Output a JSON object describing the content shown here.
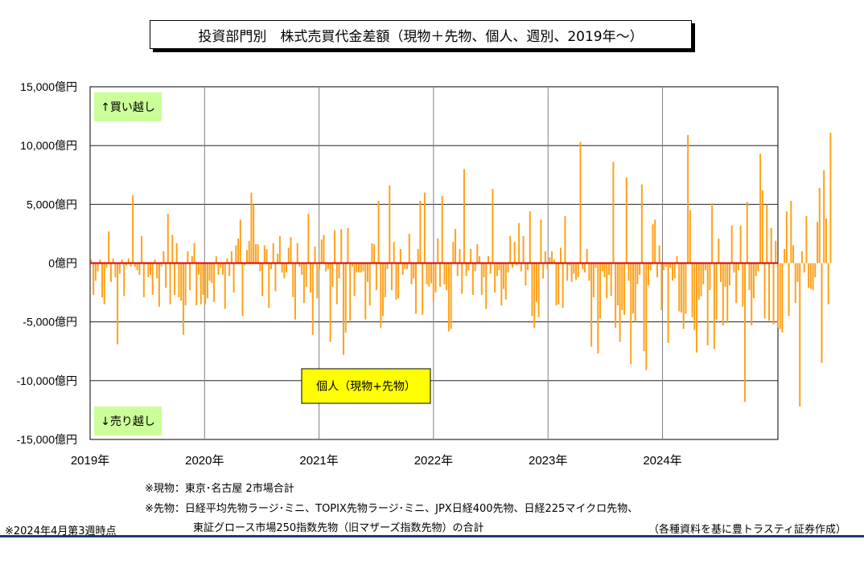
{
  "title": "投資部門別　株式売買代金差額（現物＋先物、個人、週別、2019年～）",
  "notes": {
    "genbutsu": "※現物：東京･名古屋 2市場合計",
    "sakimono_1": "※先物：日経平均先物ラージ･ミニ、TOPIX先物ラージ･ミニ、JPX日経400先物、日経225マイクロ先物、",
    "sakimono_2": "東証グロース市場250指数先物（旧マザーズ指数先物）の合計",
    "asof": "※2024年4月第3週時点",
    "source": "（各種資料を基に豊トラスティ証券作成）"
  },
  "colors": {
    "bar": "#ffa11a",
    "zero_line": "#e60000",
    "tag_bg": "#ccff99",
    "series_label_bg": "#ffff00"
  },
  "chart_data": {
    "type": "bar",
    "series": [
      {
        "name": "個人（現物+先物）",
        "unit": "億円"
      }
    ],
    "y_axis": {
      "min": -15000,
      "max": 15000,
      "ticks": [
        15000,
        10000,
        5000,
        0,
        -5000,
        -10000,
        -15000
      ],
      "tick_labels": [
        "15,000億円",
        "10,000億円",
        "5,000億円",
        "0億円",
        "-5,000億円",
        "-10,000億円",
        "-15,000億円"
      ]
    },
    "x_axis": {
      "start": "2019-01",
      "end": "2024-12",
      "tick_labels": [
        "2019年",
        "2020年",
        "2021年",
        "2022年",
        "2023年",
        "2024年"
      ]
    },
    "annotations": {
      "top": "↑買い越し",
      "bottom": "↓売り越し"
    },
    "grid": true,
    "weekly_values": [
      300,
      -2700,
      -1500,
      -700,
      300,
      -2900,
      -3500,
      -400,
      2700,
      -1600,
      400,
      -1200,
      -6900,
      -900,
      300,
      -2800,
      -200,
      400,
      -300,
      5800,
      -300,
      -600,
      -1000,
      2300,
      -2900,
      -100,
      -1200,
      -1000,
      -2700,
      300,
      -1300,
      -3700,
      -300,
      1000,
      -2100,
      4200,
      -3500,
      2400,
      -2700,
      1700,
      -2900,
      -3200,
      -6100,
      -3600,
      1000,
      -2300,
      600,
      1700,
      -3600,
      -1000,
      -3500,
      -2700,
      -3500,
      -3000,
      -1500,
      -1700,
      -3300,
      600,
      -1000,
      -400,
      -1000,
      -3900,
      400,
      -1100,
      1000,
      -2500,
      1500,
      2100,
      3700,
      -4500,
      -200,
      1100,
      1900,
      6000,
      5000,
      1600,
      1600,
      -700,
      -2800,
      1500,
      1200,
      -3800,
      -500,
      1700,
      -2400,
      800,
      2300,
      -800,
      -1300,
      -800,
      1300,
      2200,
      -2900,
      -4800,
      1700,
      -300,
      -1000,
      -3400,
      -2000,
      4200,
      -2500,
      -6100,
      1400,
      -3000,
      -500,
      2000,
      2400,
      -700,
      -500,
      -6700,
      -2000,
      2800,
      -3500,
      -1300,
      2900,
      -7800,
      -5900,
      3000,
      -4900,
      -300,
      -2800,
      -800,
      -800,
      -800,
      -700,
      -4800,
      -1600,
      -3600,
      1700,
      1600,
      -2300,
      5300,
      -5500,
      -4500,
      -2900,
      -500,
      6600,
      -2300,
      1800,
      -3100,
      -3000,
      1200,
      -1000,
      -500,
      -500,
      2500,
      -1800,
      -1300,
      -4300,
      1200,
      5300,
      -4400,
      6000,
      -1800,
      -2000,
      -1700,
      -3300,
      -2500,
      2100,
      -2000,
      5700,
      -1800,
      -2300,
      -5800,
      -5600,
      1800,
      2900,
      -1100,
      1200,
      -2600,
      8000,
      -1100,
      -600,
      1200,
      -2700,
      -700,
      1600,
      600,
      -2700,
      -1200,
      -3900,
      600,
      -900,
      6300,
      -2500,
      -1100,
      -600,
      -3600,
      -2200,
      -3100,
      -800,
      2300,
      -400,
      1800,
      -200,
      3400,
      -700,
      2300,
      -1900,
      -600,
      4400,
      -4500,
      -5500,
      -3300,
      -4600,
      3700,
      -1300,
      1000,
      -500,
      500,
      1000,
      300,
      -3600,
      -3500,
      1300,
      -3800,
      4000,
      -1500,
      -200,
      -1600,
      -900,
      -1400,
      -1200,
      10300,
      -500,
      -800,
      1200,
      -1500,
      -7100,
      -2900,
      -400,
      -7700,
      -4700,
      -700,
      -1200,
      -3000,
      -1000,
      -2800,
      8600,
      -5500,
      -3600,
      -6700,
      -4000,
      -4400,
      7300,
      -1500,
      -8600,
      -4300,
      -5000,
      -1800,
      -1000,
      6700,
      -7500,
      -9100,
      -1900,
      -600,
      3300,
      3700,
      -1200,
      1500,
      -4000,
      -600,
      -300,
      -6800,
      -400,
      -1500,
      -1300,
      600,
      -4100,
      -4200,
      -5600,
      -4300,
      10900,
      4500,
      -4600,
      -5700,
      -7600,
      -3100,
      -2800,
      -1800,
      -600,
      -7000,
      -2300,
      5100,
      -7300,
      -4800,
      2100,
      -1600,
      -5300,
      -2000,
      -5100,
      -1900,
      3200,
      -800,
      -3400,
      -600,
      3200,
      -3700,
      -11800,
      5200,
      -2300,
      -5300,
      -3000,
      -1100,
      -700,
      9300,
      6200,
      -4700,
      5000,
      -4900,
      3000,
      -5200,
      1900,
      -5500,
      -5600,
      -5900,
      1200,
      4400,
      -4500,
      5300,
      1500,
      -3400,
      -1600,
      -12200,
      1000,
      -800,
      4000,
      -2100,
      -2200,
      -2300,
      -1200,
      3500,
      6400,
      -8500,
      7900,
      3800,
      -3500,
      11100
    ]
  }
}
